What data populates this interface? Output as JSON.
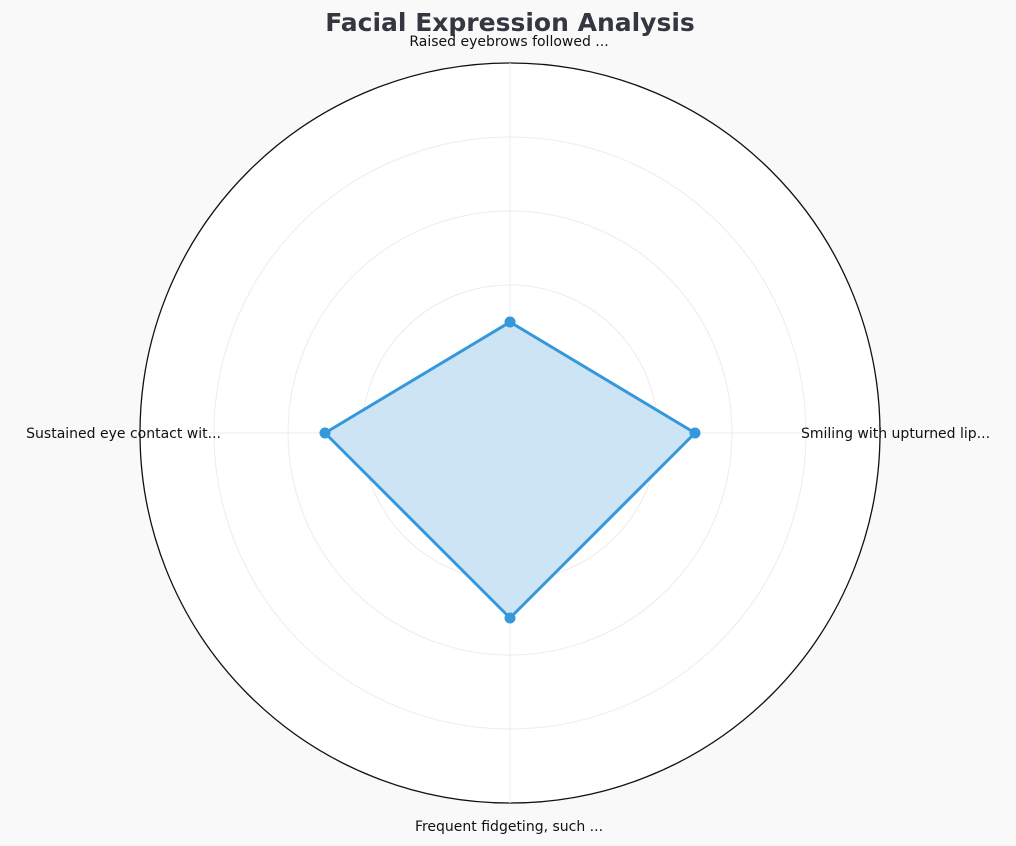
{
  "chart_data": {
    "type": "radar",
    "title": "Facial Expression Analysis",
    "categories": [
      "Smiling with upturned lip...",
      "Raised eyebrows followed ...",
      "Sustained eye contact wit...",
      "Frequent fidgeting, such ..."
    ],
    "series": [
      {
        "values": [
          5,
          3,
          5,
          5
        ],
        "color": "#3498db",
        "fill_color": "#cde4f4"
      }
    ],
    "rlim": [
      0,
      10
    ],
    "grid": true,
    "radial_tick_labels": false
  }
}
